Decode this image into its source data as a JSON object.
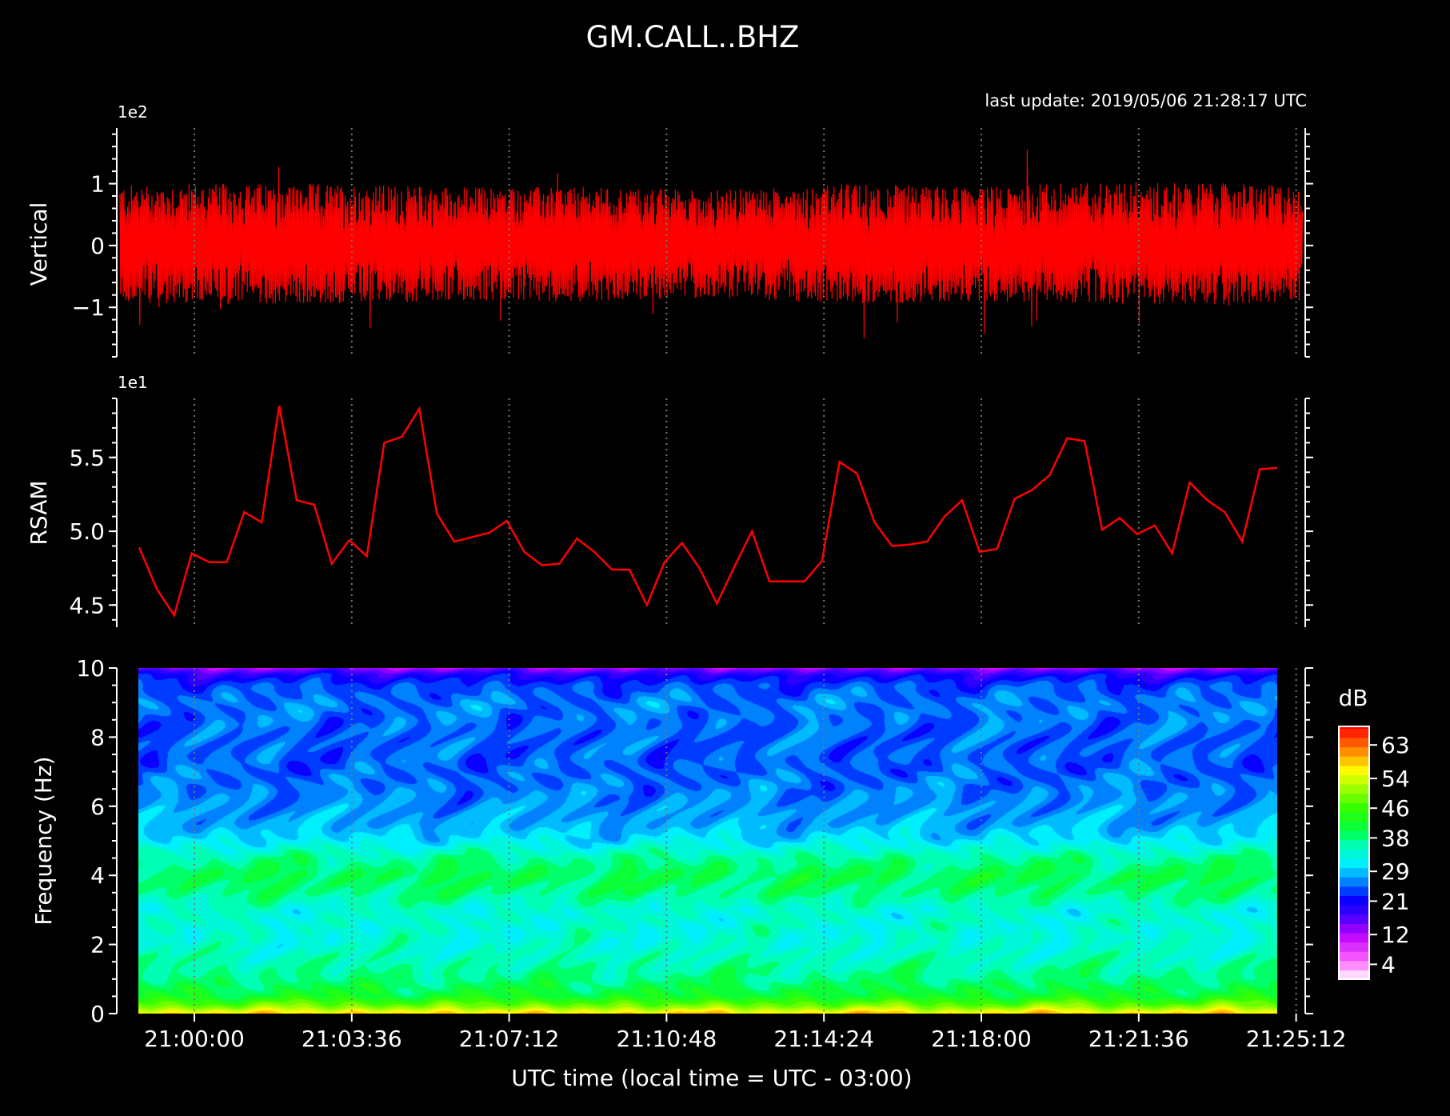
{
  "title": "GM.CALL..BHZ",
  "last_update": "last update: 2019/05/06 21:28:17 UTC",
  "chart_data": [
    {
      "type": "line",
      "name": "waveform",
      "ylabel": "Vertical",
      "offset_label": "1e2",
      "ylim": [
        -1.8,
        1.9
      ],
      "yticks": [
        -1,
        0,
        1
      ],
      "ytick_labels": [
        "−1",
        "0",
        "1"
      ],
      "series_color": "#ff0000",
      "envelope_note": "dense noise, amplitude roughly within ±0.9 (×1e2) with spikes to about ±1.6",
      "amplitude_envelope": {
        "x_minutes": [
          -3,
          0,
          3,
          6,
          9,
          12,
          15,
          18,
          21,
          24,
          25.5
        ],
        "upper": [
          0.95,
          1.0,
          1.0,
          0.95,
          0.95,
          0.9,
          1.0,
          0.95,
          1.05,
          1.0,
          0.95
        ],
        "lower": [
          -0.9,
          -0.95,
          -0.95,
          -0.9,
          -0.9,
          -0.85,
          -0.95,
          -0.9,
          -0.95,
          -0.95,
          -0.9
        ]
      }
    },
    {
      "type": "line",
      "name": "rsam",
      "ylabel": "RSAM",
      "offset_label": "1e1",
      "ylim": [
        4.35,
        5.9
      ],
      "yticks": [
        4.5,
        5.0,
        5.5
      ],
      "ytick_labels": [
        "4.5",
        "5.0",
        "5.5"
      ],
      "series_color": "#ff0000",
      "values": [
        4.89,
        4.61,
        4.43,
        4.85,
        4.79,
        4.79,
        5.13,
        5.06,
        5.85,
        5.21,
        5.18,
        4.78,
        4.94,
        4.83,
        5.6,
        5.64,
        5.83,
        5.12,
        4.93,
        4.96,
        4.99,
        5.07,
        4.86,
        4.77,
        4.78,
        4.95,
        4.86,
        4.74,
        4.74,
        4.5,
        4.79,
        4.92,
        4.75,
        4.51,
        4.76,
        5.0,
        4.66,
        4.66,
        4.66,
        4.8,
        5.47,
        5.39,
        5.06,
        4.9,
        4.91,
        4.93,
        5.1,
        5.21,
        4.86,
        4.88,
        5.22,
        5.28,
        5.38,
        5.63,
        5.61,
        5.01,
        5.09,
        4.98,
        5.04,
        4.85,
        5.33,
        5.21,
        5.13,
        4.93,
        5.42,
        5.43
      ]
    },
    {
      "type": "heatmap",
      "name": "spectrogram",
      "ylabel": "Frequency (Hz)",
      "ylim": [
        0,
        10
      ],
      "yticks": [
        0,
        2,
        4,
        6,
        8,
        10
      ],
      "ytick_labels": [
        "0",
        "2",
        "4",
        "6",
        "8",
        "10"
      ],
      "xlabel": "UTC time (local time = UTC - 03:00)",
      "xtick_labels": [
        "21:00:00",
        "21:03:36",
        "21:07:12",
        "21:10:48",
        "21:14:24",
        "21:18:00",
        "21:21:36",
        "21:25:12"
      ],
      "colorbar_label": "dB",
      "colorbar_ticks": [
        "4",
        "12",
        "21",
        "29",
        "38",
        "46",
        "54",
        "63"
      ],
      "colorbar_range": [
        0,
        68
      ],
      "db_profile_by_frequency": {
        "freq_hz": [
          0,
          0.2,
          0.5,
          1,
          1.5,
          2,
          3,
          3.5,
          4,
          4.5,
          5,
          5.5,
          6,
          7,
          8,
          9,
          9.5,
          9.8,
          10
        ],
        "db": [
          58,
          50,
          42,
          38,
          36,
          34,
          34,
          38,
          40,
          37,
          31,
          28,
          27,
          25,
          25,
          26,
          24,
          20,
          13
        ]
      }
    }
  ]
}
